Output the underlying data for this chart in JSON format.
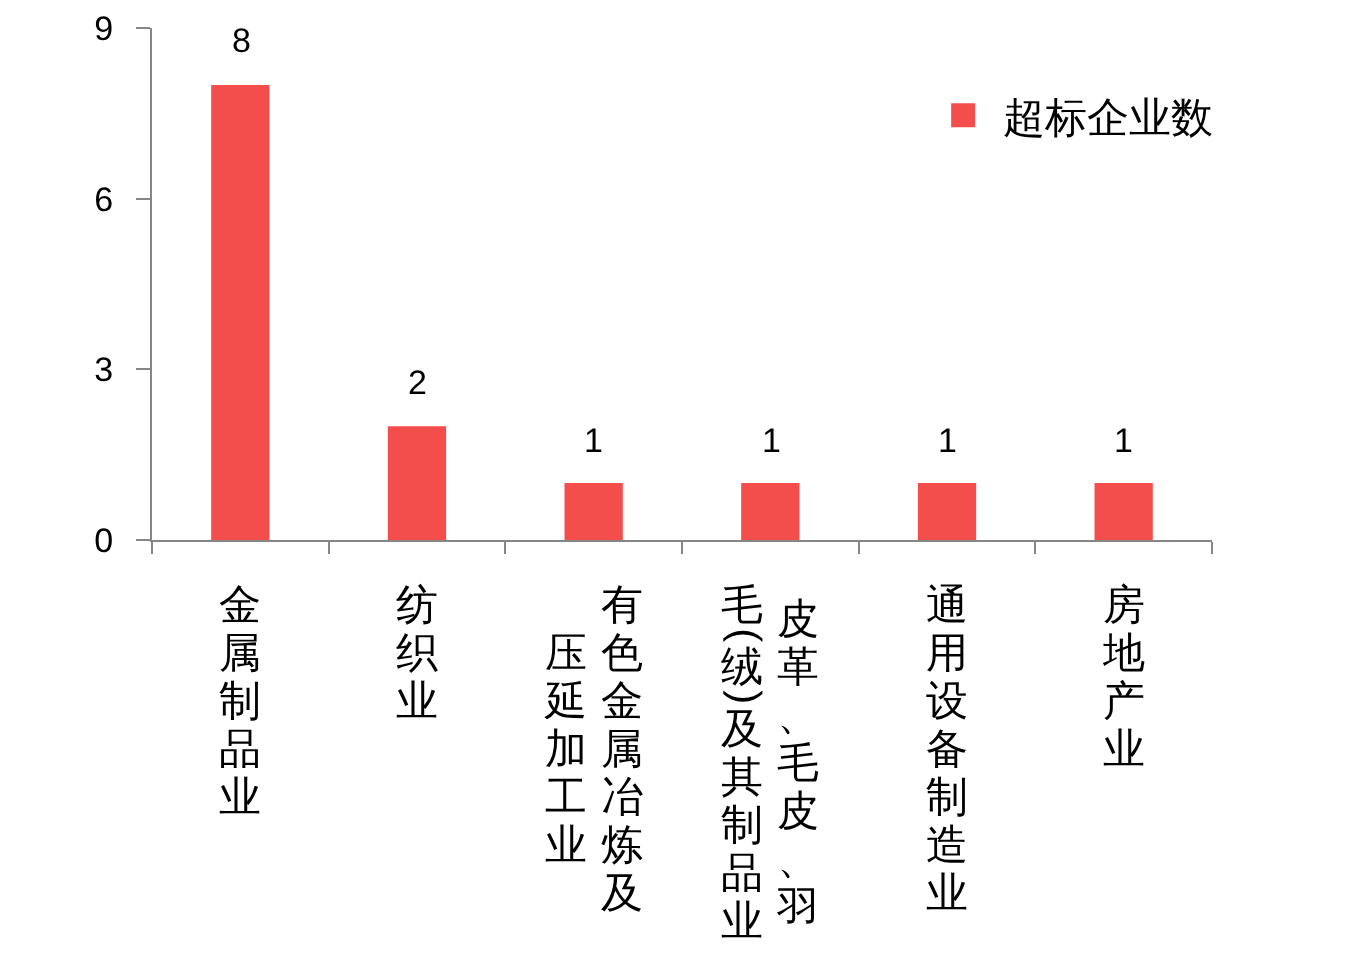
{
  "chart_data": {
    "type": "bar",
    "categories": [
      "金属制品业",
      "纺织业",
      "有色金属冶炼及压延加工业",
      "皮革、毛皮、羽毛(绒)及其制品业",
      "通用设备制造业",
      "房地产业"
    ],
    "series": [
      {
        "name": "超标企业数",
        "color": "#f34e4c",
        "values": [
          8,
          2,
          1,
          1,
          1,
          1
        ]
      }
    ],
    "ylim": [
      0,
      9
    ],
    "yticks": [
      0,
      3,
      6,
      9
    ],
    "data_labels": true,
    "legend": "top right",
    "grid": false
  }
}
